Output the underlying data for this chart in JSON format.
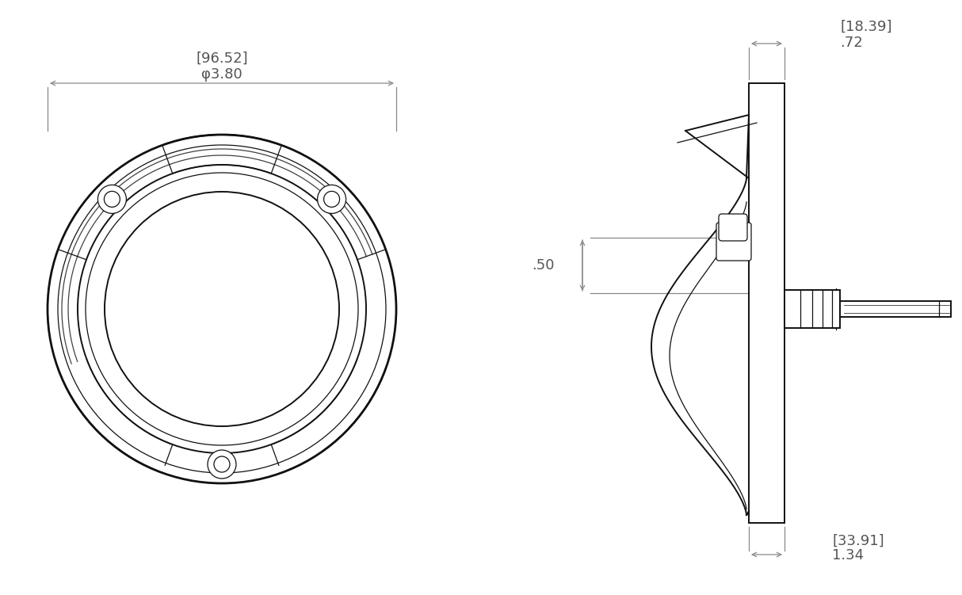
{
  "bg_color": "#ffffff",
  "line_color": "#111111",
  "dim_color": "#555555",
  "dim_line_color": "#888888",
  "fig_width": 12.14,
  "fig_height": 7.51,
  "dim_top_label1": "[96.52]",
  "dim_top_label2": "φ3.80",
  "dim_right_top_label1": "[18.39]",
  "dim_right_top_label2": ".72",
  "dim_right_bot_label1": "[33.91]",
  "dim_right_bot_label2": "1.34",
  "dim_left_label": ".50"
}
